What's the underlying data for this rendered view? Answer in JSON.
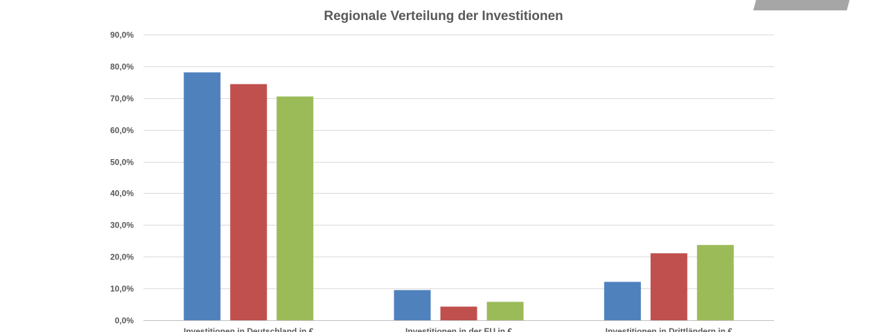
{
  "colors": {
    "title": "#595959",
    "axis_text": "#595959",
    "grid": "#d9d9d9",
    "axis_line": "#bfbfbf",
    "corner_shape": "#a6a6a6"
  },
  "chart_data": {
    "type": "bar",
    "title": "Regionale Verteilung der Investitionen",
    "xlabel": "",
    "ylabel": "",
    "ylim": [
      0,
      90
    ],
    "yticks": [
      0,
      10,
      20,
      30,
      40,
      50,
      60,
      70,
      80,
      90
    ],
    "ytick_labels": [
      "0,0%",
      "10,0%",
      "20,0%",
      "30,0%",
      "40,0%",
      "50,0%",
      "60,0%",
      "70,0%",
      "80,0%",
      "90,0%"
    ],
    "grid": true,
    "legend": "none",
    "categories": [
      "Investitionen in Deutschland in €",
      "Investitionen in der EU in €",
      "Investitionen in Drittländern in €"
    ],
    "series": [
      {
        "color": "#4f81bd",
        "values": [
          78.1,
          9.5,
          12.1
        ]
      },
      {
        "color": "#c0504d",
        "values": [
          74.4,
          4.3,
          21.1
        ]
      },
      {
        "color": "#9bbb59",
        "values": [
          70.5,
          5.8,
          23.7
        ]
      }
    ]
  }
}
